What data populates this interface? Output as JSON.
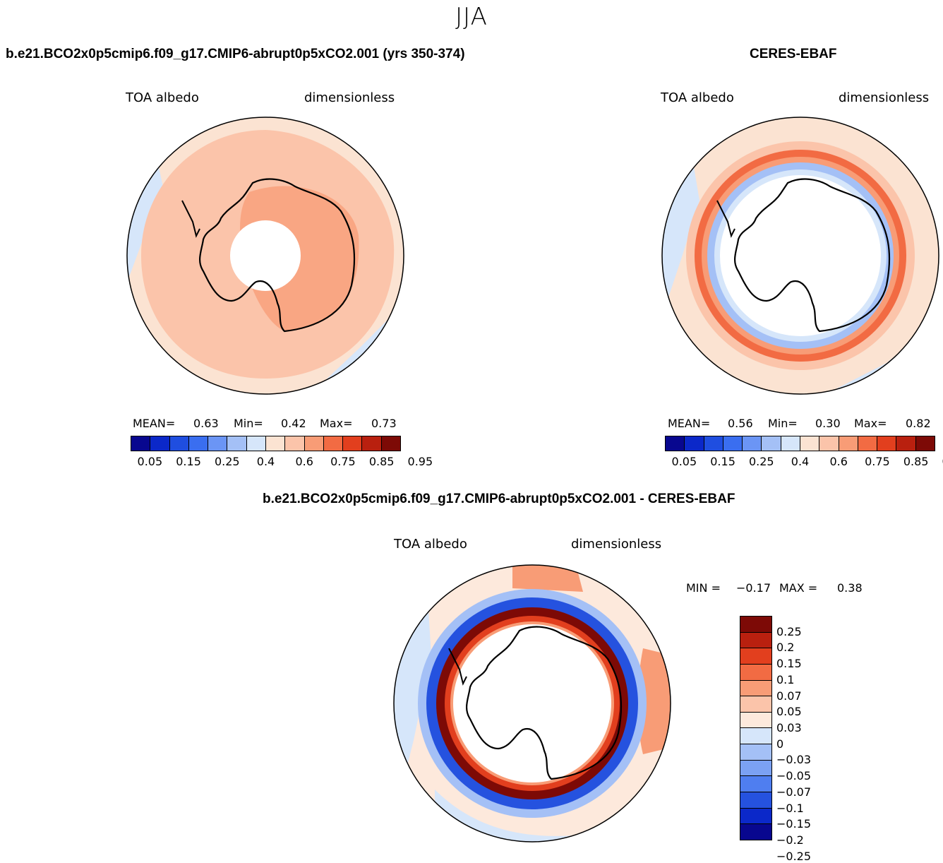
{
  "season": "JJA",
  "panels": {
    "model": {
      "title": "b.e21.BCO2x0p5cmip6.f09_g17.CMIP6-abrupt0p5xCO2.001 (yrs 350-374)",
      "variable": "TOA albedo",
      "units": "dimensionless",
      "mean_label": "MEAN=",
      "mean": "0.63",
      "min_label": "Min=",
      "min": "0.42",
      "max_label": "Max=",
      "max": "0.73"
    },
    "obs": {
      "title": "CERES-EBAF",
      "variable": "TOA albedo",
      "units": "dimensionless",
      "mean_label": "MEAN=",
      "mean": "0.56",
      "min_label": "Min=",
      "min": "0.30",
      "max_label": "Max=",
      "max": "0.82"
    },
    "diff": {
      "title": "b.e21.BCO2x0p5cmip6.f09_g17.CMIP6-abrupt0p5xCO2.001 - CERES-EBAF",
      "variable": "TOA albedo",
      "units": "dimensionless",
      "min_label": "MIN =",
      "min": "−0.17",
      "max_label": "MAX =",
      "max": "0.38"
    }
  },
  "abs_colorbar": {
    "colors": [
      "#08078f",
      "#0b28c9",
      "#1f4ee0",
      "#3a6ef0",
      "#6b95f5",
      "#a4c0f6",
      "#d6e6fa",
      "#fbe3d2",
      "#fbc4aa",
      "#f89c76",
      "#f26b43",
      "#e23f1e",
      "#b9200f",
      "#7d0a06"
    ],
    "ticks": [
      "0.05",
      "0.15",
      "0.25",
      "0.4",
      "0.6",
      "0.75",
      "0.85",
      "0.95"
    ]
  },
  "diff_colorbar": {
    "colors": [
      "#7d0a06",
      "#b9200f",
      "#e23f1e",
      "#f26b43",
      "#f89c76",
      "#fbc4aa",
      "#fde9dc",
      "#d6e6fa",
      "#a4c0f6",
      "#7ba1f3",
      "#4f7ef0",
      "#2552df",
      "#0b28c9",
      "#08078f"
    ],
    "ticks": [
      "0.25",
      "0.2",
      "0.15",
      "0.1",
      "0.07",
      "0.05",
      "0.03",
      "0",
      "−0.03",
      "−0.05",
      "−0.07",
      "−0.1",
      "−0.15",
      "−0.2",
      "−0.25"
    ]
  }
}
